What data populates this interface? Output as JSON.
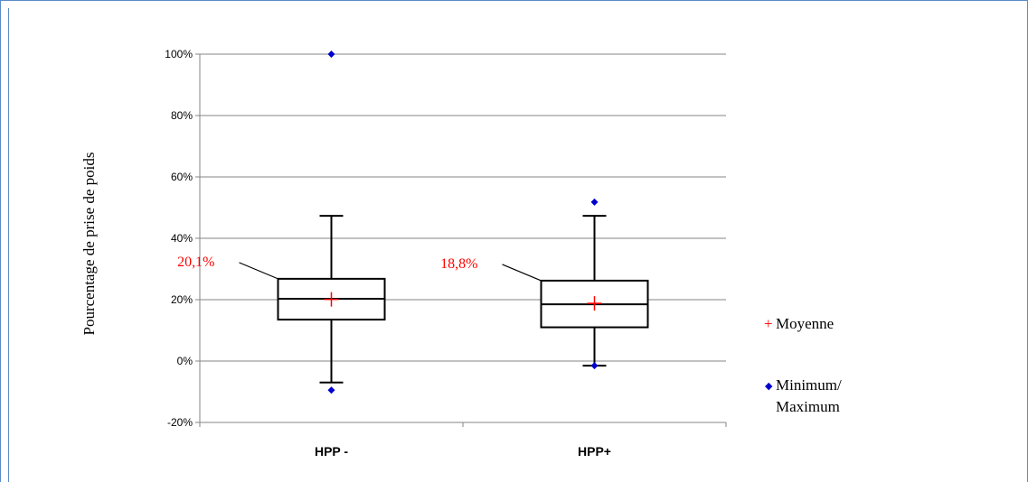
{
  "chart_data": {
    "type": "box",
    "ylabel": "Pourcentage de prise de poids",
    "ylim": [
      -20,
      100
    ],
    "yticks": [
      "100%",
      "80%",
      "60%",
      "40%",
      "20%",
      "0%",
      "-20%"
    ],
    "ytick_values": [
      100,
      80,
      60,
      40,
      20,
      0,
      -20
    ],
    "grid": true,
    "categories": [
      "HPP -",
      "HPP+"
    ],
    "boxes": [
      {
        "category": "HPP -",
        "whisker_low": -7,
        "q1": 13.5,
        "median": 20.3,
        "q3": 26.8,
        "whisker_high": 47.3,
        "mean": 20.1,
        "min": -9.5,
        "max": 100,
        "mean_label": "20,1%"
      },
      {
        "category": "HPP+",
        "whisker_low": -1.5,
        "q1": 11,
        "median": 18.5,
        "q3": 26.2,
        "whisker_high": 47.3,
        "mean": 18.8,
        "min": -1.5,
        "max": 51.8,
        "mean_label": "18,8%"
      }
    ],
    "legend": {
      "placement": "right",
      "entries": [
        {
          "symbol": "+",
          "label": "Moyenne"
        },
        {
          "symbol": "◆",
          "label_line1": "Minimum/",
          "label_line2": "Maximum"
        }
      ]
    },
    "colors": {
      "mean": "#ff0000",
      "minmax": "#0000cc",
      "grid": "#868686",
      "box": "#000000"
    }
  }
}
